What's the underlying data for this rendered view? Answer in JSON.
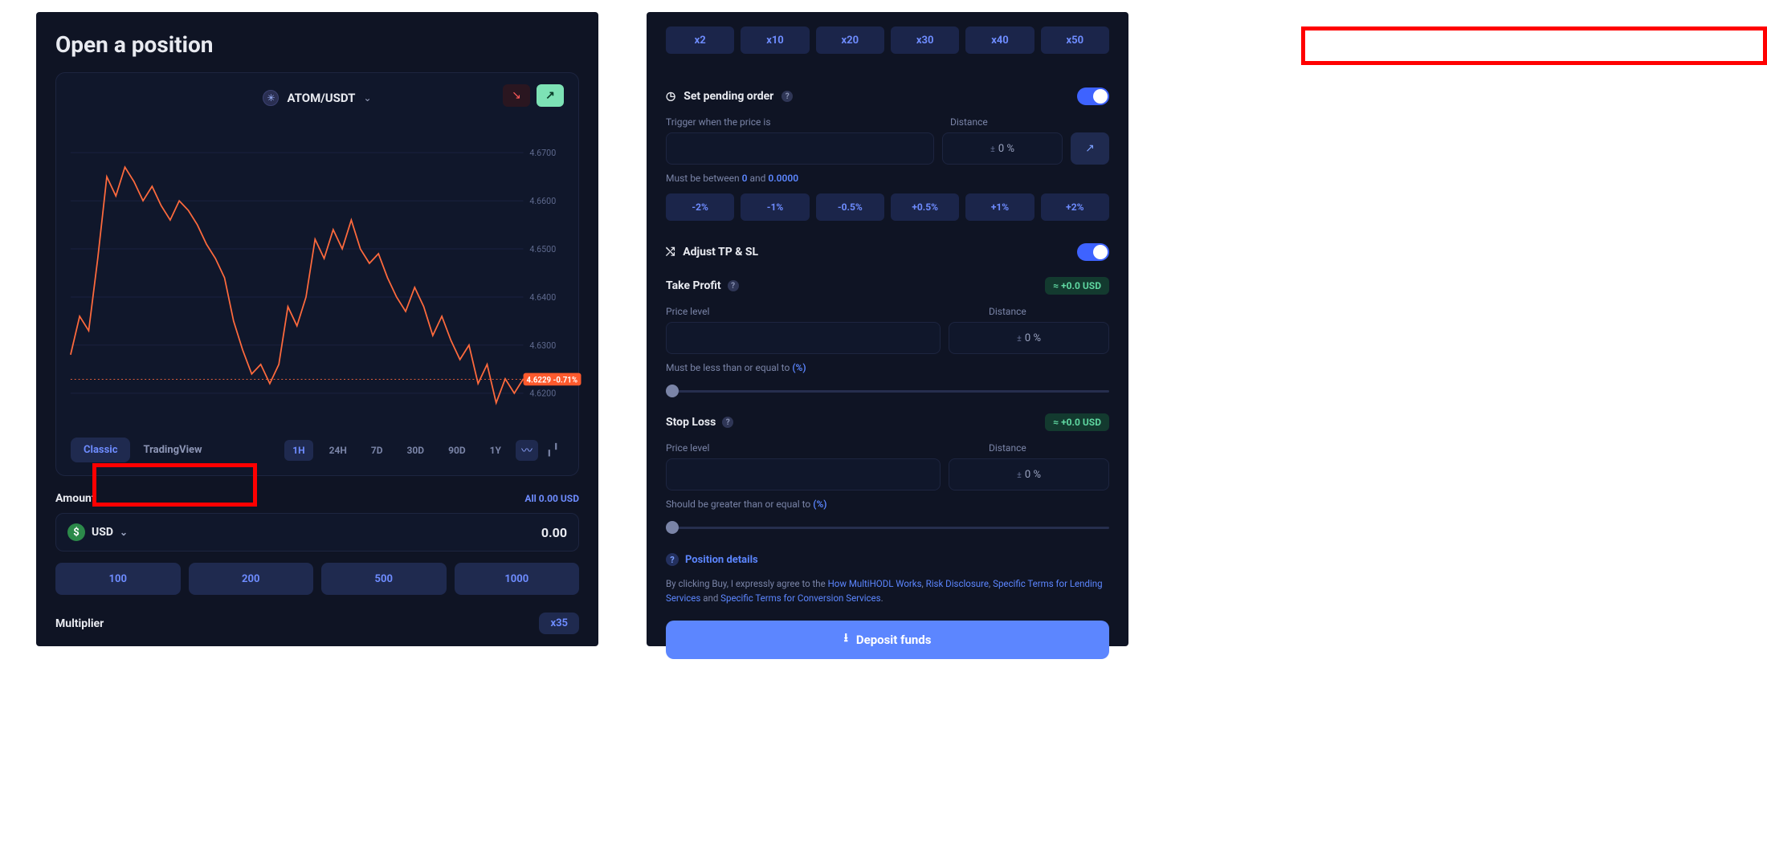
{
  "colors": {
    "panel_bg": "#0f1424",
    "card_bg": "#10172b",
    "border": "#1d2540",
    "accent": "#6e8cff",
    "accent_bg": "#1f2a4f",
    "text": "#e8eaf0",
    "muted": "#7a84a7",
    "chart_line": "#ff6a3d",
    "price_tag": "#ff5a2d",
    "gain_bg": "#133a2f",
    "gain_fg": "#5fd7a1",
    "switch_on": "#3e63ff",
    "deposit": "#5c86ff",
    "highlight_border": "#ff0000"
  },
  "left": {
    "title": "Open a position",
    "pair": "ATOM/USDT",
    "chart": {
      "type": "line",
      "yticks": [
        4.67,
        4.66,
        4.65,
        4.64,
        4.63,
        4.62
      ],
      "ylim": [
        4.615,
        4.675
      ],
      "current_price": "4.6229",
      "current_change": "-0.71%",
      "points": [
        [
          0,
          4.628
        ],
        [
          2,
          4.636
        ],
        [
          4,
          4.633
        ],
        [
          6,
          4.648
        ],
        [
          8,
          4.665
        ],
        [
          10,
          4.661
        ],
        [
          12,
          4.667
        ],
        [
          14,
          4.664
        ],
        [
          16,
          4.66
        ],
        [
          18,
          4.663
        ],
        [
          20,
          4.659
        ],
        [
          22,
          4.656
        ],
        [
          24,
          4.66
        ],
        [
          26,
          4.658
        ],
        [
          28,
          4.655
        ],
        [
          30,
          4.651
        ],
        [
          32,
          4.648
        ],
        [
          34,
          4.644
        ],
        [
          36,
          4.635
        ],
        [
          38,
          4.629
        ],
        [
          40,
          4.624
        ],
        [
          42,
          4.626
        ],
        [
          44,
          4.622
        ],
        [
          46,
          4.626
        ],
        [
          48,
          4.638
        ],
        [
          50,
          4.634
        ],
        [
          52,
          4.64
        ],
        [
          54,
          4.652
        ],
        [
          56,
          4.648
        ],
        [
          58,
          4.654
        ],
        [
          60,
          4.65
        ],
        [
          62,
          4.656
        ],
        [
          64,
          4.65
        ],
        [
          66,
          4.647
        ],
        [
          68,
          4.649
        ],
        [
          70,
          4.644
        ],
        [
          72,
          4.64
        ],
        [
          74,
          4.637
        ],
        [
          76,
          4.642
        ],
        [
          78,
          4.638
        ],
        [
          80,
          4.632
        ],
        [
          82,
          4.636
        ],
        [
          84,
          4.631
        ],
        [
          86,
          4.627
        ],
        [
          88,
          4.63
        ],
        [
          90,
          4.622
        ],
        [
          92,
          4.626
        ],
        [
          94,
          4.618
        ],
        [
          96,
          4.623
        ],
        [
          98,
          4.62
        ],
        [
          100,
          4.623
        ]
      ]
    },
    "view_tabs": [
      "Classic",
      "TradingView"
    ],
    "view_active": "Classic",
    "ranges": [
      "1H",
      "24H",
      "7D",
      "30D",
      "90D",
      "1Y"
    ],
    "range_active": "1H",
    "amount_label": "Amount",
    "all_link": "All 0.00 USD",
    "currency": "USD",
    "amount_value": "0.00",
    "amount_presets": [
      "100",
      "200",
      "500",
      "1000"
    ],
    "multiplier_label": "Multiplier",
    "multiplier_value": "x35"
  },
  "right": {
    "leverage": [
      "x2",
      "x10",
      "x20",
      "x30",
      "x40",
      "x50"
    ],
    "pending": {
      "title": "Set pending order",
      "trigger_label": "Trigger when the price is",
      "distance_label": "Distance",
      "distance_value": "0",
      "distance_unit": "%",
      "hint_prefix": "Must be between ",
      "hint_a": "0",
      "hint_mid": " and ",
      "hint_b": "0.0000",
      "pcts": [
        "-2%",
        "-1%",
        "-0.5%",
        "+0.5%",
        "+1%",
        "+2%"
      ]
    },
    "tpsl_title": "Adjust TP & SL",
    "tp": {
      "label": "Take Profit",
      "gain": "≈ +0.0 USD",
      "price_level_label": "Price level",
      "distance_label": "Distance",
      "distance_value": "0",
      "distance_unit": "%",
      "hint": "Must be less than or equal to ",
      "hint_suffix": "(%)"
    },
    "sl": {
      "label": "Stop Loss",
      "gain": "≈ +0.0 USD",
      "price_level_label": "Price level",
      "distance_label": "Distance",
      "distance_value": "0",
      "distance_unit": "%",
      "hint": "Should be greater than or equal to ",
      "hint_suffix": "(%)"
    },
    "details_link": "Position details",
    "agree_prefix": "By clicking Buy, I expressly agree to the ",
    "agree_links": [
      "How MultiHODL Works",
      "Risk Disclosure",
      "Specific Terms for Lending Services"
    ],
    "agree_and": " and ",
    "agree_last": "Specific Terms for Conversion Services",
    "deposit": "Deposit funds"
  }
}
